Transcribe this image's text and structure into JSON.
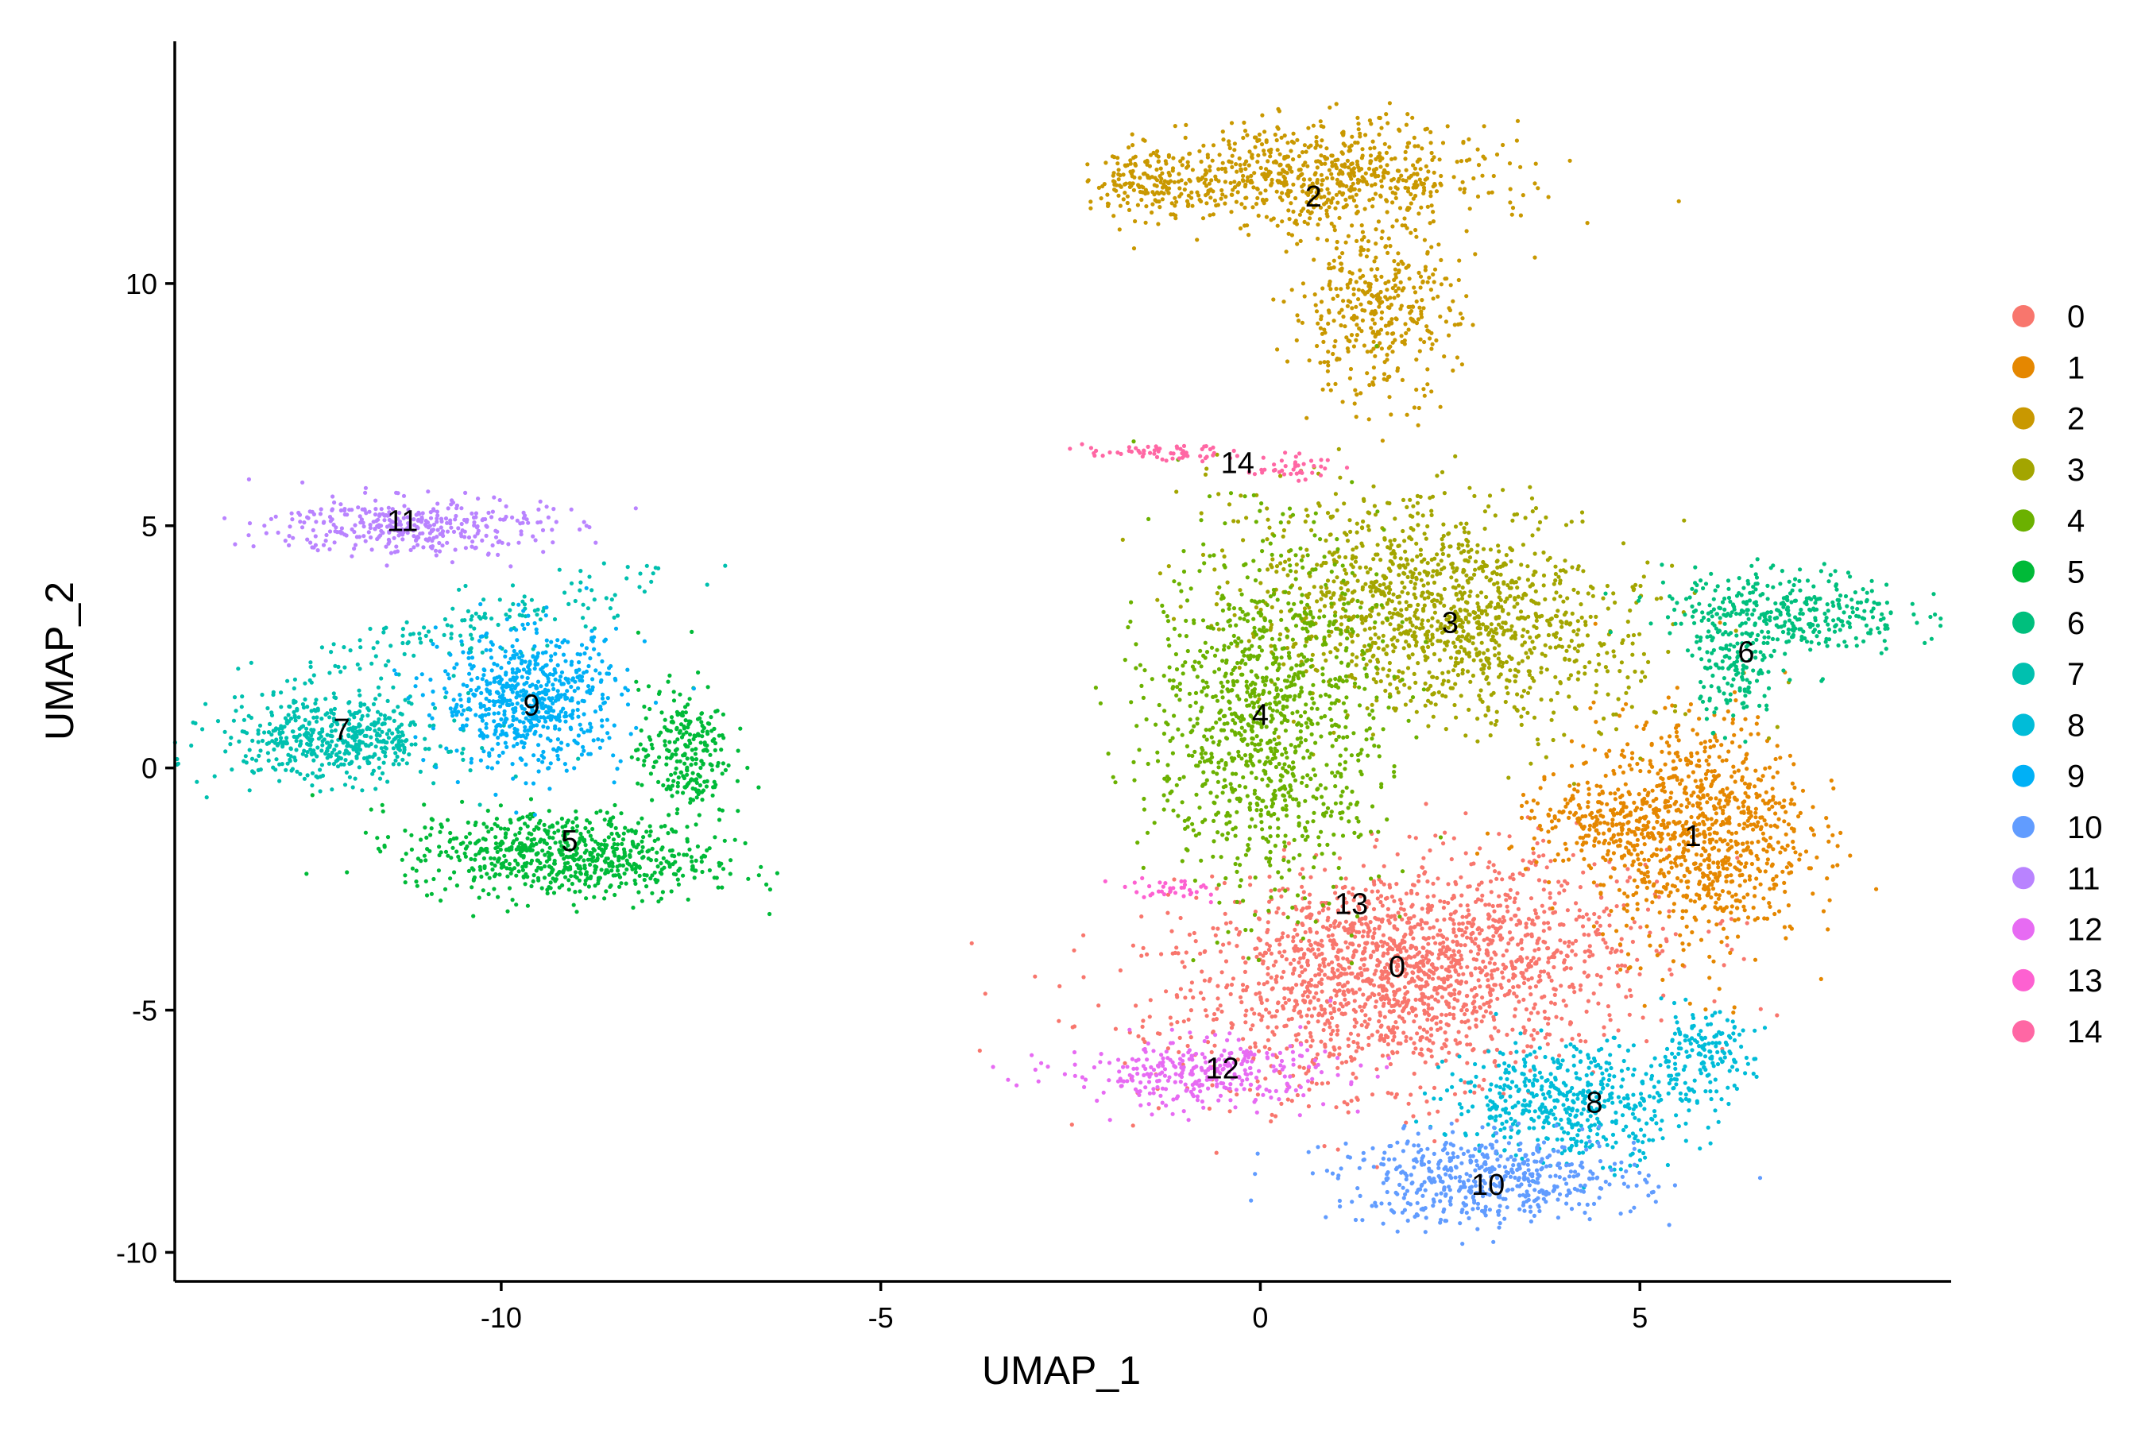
{
  "chart_data": {
    "type": "scatter",
    "title": "",
    "xlabel": "UMAP_1",
    "ylabel": "UMAP_2",
    "xlim": [
      -14.3,
      9.1
    ],
    "ylim": [
      -10.6,
      15.0
    ],
    "x_ticks": [
      -10,
      -5,
      0,
      5
    ],
    "x_tick_labels": [
      "-10",
      "-5",
      "0",
      "5"
    ],
    "y_ticks": [
      -10,
      -5,
      0,
      5,
      10
    ],
    "y_tick_labels": [
      "-10",
      "-5",
      "0",
      "5",
      "10"
    ],
    "grid": false,
    "legend_position": "right",
    "legend_entries": [
      "0",
      "1",
      "2",
      "3",
      "4",
      "5",
      "6",
      "7",
      "8",
      "9",
      "10",
      "11",
      "12",
      "13",
      "14"
    ],
    "colors": [
      "#F8766D",
      "#E58700",
      "#C99800",
      "#A3A500",
      "#6BB100",
      "#00BA38",
      "#00BF7D",
      "#00C0AF",
      "#00BCD8",
      "#00B0F6",
      "#619CFF",
      "#B983FF",
      "#E76BF3",
      "#FD61D1",
      "#FF67A4"
    ],
    "clusters": [
      {
        "name": "0",
        "label_pos": [
          1.8,
          -4.1
        ],
        "blobs": [
          {
            "cx": 1.9,
            "cy": -4.2,
            "sx": 1.55,
            "sy": 1.1,
            "rot": 18,
            "n": 1900
          }
        ]
      },
      {
        "name": "1",
        "label_pos": [
          5.7,
          -1.4
        ],
        "blobs": [
          {
            "cx": 5.8,
            "cy": -1.3,
            "sx": 0.7,
            "sy": 1.2,
            "rot": 0,
            "n": 900
          },
          {
            "cx": 4.5,
            "cy": -1.2,
            "sx": 0.6,
            "sy": 0.5,
            "rot": 0,
            "n": 200
          }
        ]
      },
      {
        "name": "2",
        "label_pos": [
          0.7,
          11.8
        ],
        "blobs": [
          {
            "cx": 0.8,
            "cy": 12.2,
            "sx": 1.1,
            "sy": 0.55,
            "rot": 0,
            "n": 700
          },
          {
            "cx": -1.4,
            "cy": 12.1,
            "sx": 0.4,
            "sy": 0.3,
            "rot": 0,
            "n": 160
          },
          {
            "cx": 1.5,
            "cy": 9.4,
            "sx": 0.55,
            "sy": 0.9,
            "rot": 0,
            "n": 380
          }
        ]
      },
      {
        "name": "3",
        "label_pos": [
          2.5,
          3.0
        ],
        "blobs": [
          {
            "cx": 2.4,
            "cy": 3.2,
            "sx": 1.4,
            "sy": 1.0,
            "rot": -32,
            "n": 1300
          }
        ]
      },
      {
        "name": "4",
        "label_pos": [
          0.0,
          1.1
        ],
        "blobs": [
          {
            "cx": 0.1,
            "cy": 1.0,
            "sx": 0.75,
            "sy": 1.8,
            "rot": 0,
            "n": 1100
          }
        ]
      },
      {
        "name": "5",
        "label_pos": [
          -9.1,
          -1.5
        ],
        "blobs": [
          {
            "cx": -9.2,
            "cy": -1.8,
            "sx": 1.0,
            "sy": 0.45,
            "rot": -5,
            "n": 700
          },
          {
            "cx": -7.6,
            "cy": 0.3,
            "sx": 0.3,
            "sy": 0.7,
            "rot": 0,
            "n": 250
          }
        ]
      },
      {
        "name": "6",
        "label_pos": [
          6.4,
          2.4
        ],
        "blobs": [
          {
            "cx": 6.9,
            "cy": 3.2,
            "sx": 0.8,
            "sy": 0.45,
            "rot": 0,
            "n": 380
          },
          {
            "cx": 6.3,
            "cy": 1.9,
            "sx": 0.25,
            "sy": 0.5,
            "rot": 0,
            "n": 120
          }
        ]
      },
      {
        "name": "7",
        "label_pos": [
          -12.1,
          0.8
        ],
        "blobs": [
          {
            "cx": -12.2,
            "cy": 0.6,
            "sx": 0.75,
            "sy": 0.45,
            "rot": 0,
            "n": 520
          },
          {
            "cx": -10.4,
            "cy": 2.9,
            "sx": 1.4,
            "sy": 0.3,
            "rot": 22,
            "n": 150
          }
        ]
      },
      {
        "name": "8",
        "label_pos": [
          4.4,
          -6.9
        ],
        "blobs": [
          {
            "cx": 4.1,
            "cy": -6.9,
            "sx": 0.8,
            "sy": 0.6,
            "rot": 0,
            "n": 520
          },
          {
            "cx": 5.8,
            "cy": -5.9,
            "sx": 0.35,
            "sy": 0.4,
            "rot": 0,
            "n": 150
          }
        ]
      },
      {
        "name": "9",
        "label_pos": [
          -9.6,
          1.3
        ],
        "blobs": [
          {
            "cx": -9.6,
            "cy": 1.4,
            "sx": 0.6,
            "sy": 0.7,
            "rot": 0,
            "n": 650
          }
        ]
      },
      {
        "name": "10",
        "label_pos": [
          3.0,
          -8.6
        ],
        "blobs": [
          {
            "cx": 3.0,
            "cy": -8.5,
            "sx": 1.0,
            "sy": 0.45,
            "rot": 0,
            "n": 520
          }
        ]
      },
      {
        "name": "11",
        "label_pos": [
          -11.3,
          5.1
        ],
        "blobs": [
          {
            "cx": -11.2,
            "cy": 5.0,
            "sx": 0.9,
            "sy": 0.3,
            "rot": 0,
            "n": 360
          }
        ]
      },
      {
        "name": "12",
        "label_pos": [
          -0.5,
          -6.2
        ],
        "blobs": [
          {
            "cx": -0.8,
            "cy": -6.3,
            "sx": 0.9,
            "sy": 0.35,
            "rot": 0,
            "n": 320
          }
        ]
      },
      {
        "name": "13",
        "label_pos": [
          1.2,
          -2.8
        ],
        "blobs": [
          {
            "cx": -1.2,
            "cy": -2.5,
            "sx": 0.35,
            "sy": 0.12,
            "rot": 0,
            "n": 35
          }
        ]
      },
      {
        "name": "14",
        "label_pos": [
          -0.3,
          6.3
        ],
        "blobs": [
          {
            "cx": -1.3,
            "cy": 6.5,
            "sx": 0.5,
            "sy": 0.08,
            "rot": 0,
            "n": 60
          },
          {
            "cx": 0.4,
            "cy": 6.2,
            "sx": 0.3,
            "sy": 0.12,
            "rot": 0,
            "n": 40
          }
        ]
      }
    ]
  }
}
